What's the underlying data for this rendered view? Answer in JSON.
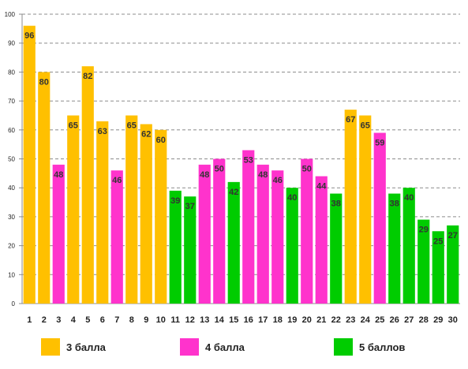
{
  "chart_data": {
    "type": "bar",
    "categories": [
      "1",
      "2",
      "3",
      "4",
      "5",
      "6",
      "7",
      "8",
      "9",
      "10",
      "11",
      "12",
      "13",
      "14",
      "15",
      "16",
      "17",
      "18",
      "19",
      "20",
      "21",
      "22",
      "23",
      "24",
      "25",
      "26",
      "27",
      "28",
      "29",
      "30"
    ],
    "values": [
      96,
      80,
      48,
      65,
      82,
      63,
      46,
      65,
      62,
      60,
      39,
      37,
      48,
      50,
      42,
      53,
      48,
      46,
      40,
      50,
      44,
      38,
      67,
      65,
      59,
      38,
      40,
      29,
      25,
      27
    ],
    "groups": [
      3,
      3,
      4,
      3,
      3,
      3,
      4,
      3,
      3,
      3,
      5,
      5,
      4,
      4,
      5,
      4,
      4,
      4,
      5,
      4,
      4,
      5,
      3,
      3,
      4,
      5,
      5,
      5,
      5,
      5
    ],
    "ylim": [
      0,
      100
    ],
    "yticks": [
      0,
      10,
      20,
      30,
      40,
      50,
      60,
      70,
      80,
      90,
      100
    ],
    "grid": true,
    "legend_position": "bottom",
    "legend": [
      {
        "group": 3,
        "label": "3 балла",
        "color": "#FFC000"
      },
      {
        "group": 4,
        "label": "4 балла",
        "color": "#FF33CC"
      },
      {
        "group": 5,
        "label": "5 баллов",
        "color": "#00CC00"
      }
    ]
  }
}
